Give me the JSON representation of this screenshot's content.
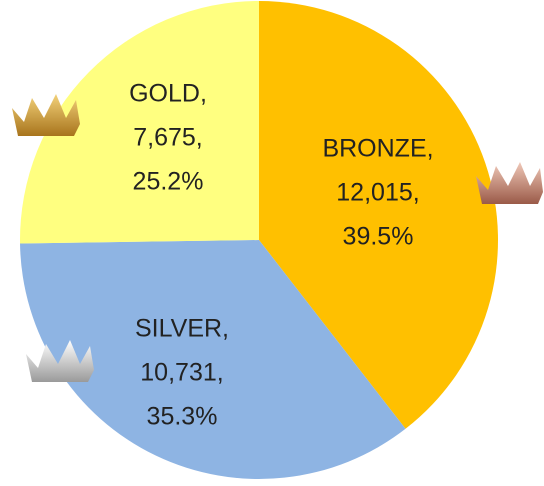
{
  "chart_data": {
    "type": "pie",
    "labels": [
      "BRONZE,",
      "SILVER,",
      "GOLD,"
    ],
    "values": [
      12015,
      10731,
      7675
    ],
    "value_labels": [
      "12,015,",
      "10,731,",
      "7,675,"
    ],
    "percents": [
      39.5,
      35.3,
      25.2
    ],
    "percent_labels": [
      "39.5%",
      "35.3%",
      "25.2%"
    ],
    "colors": [
      "#FFC000",
      "#8EB4E3",
      "#FFFF80"
    ]
  }
}
